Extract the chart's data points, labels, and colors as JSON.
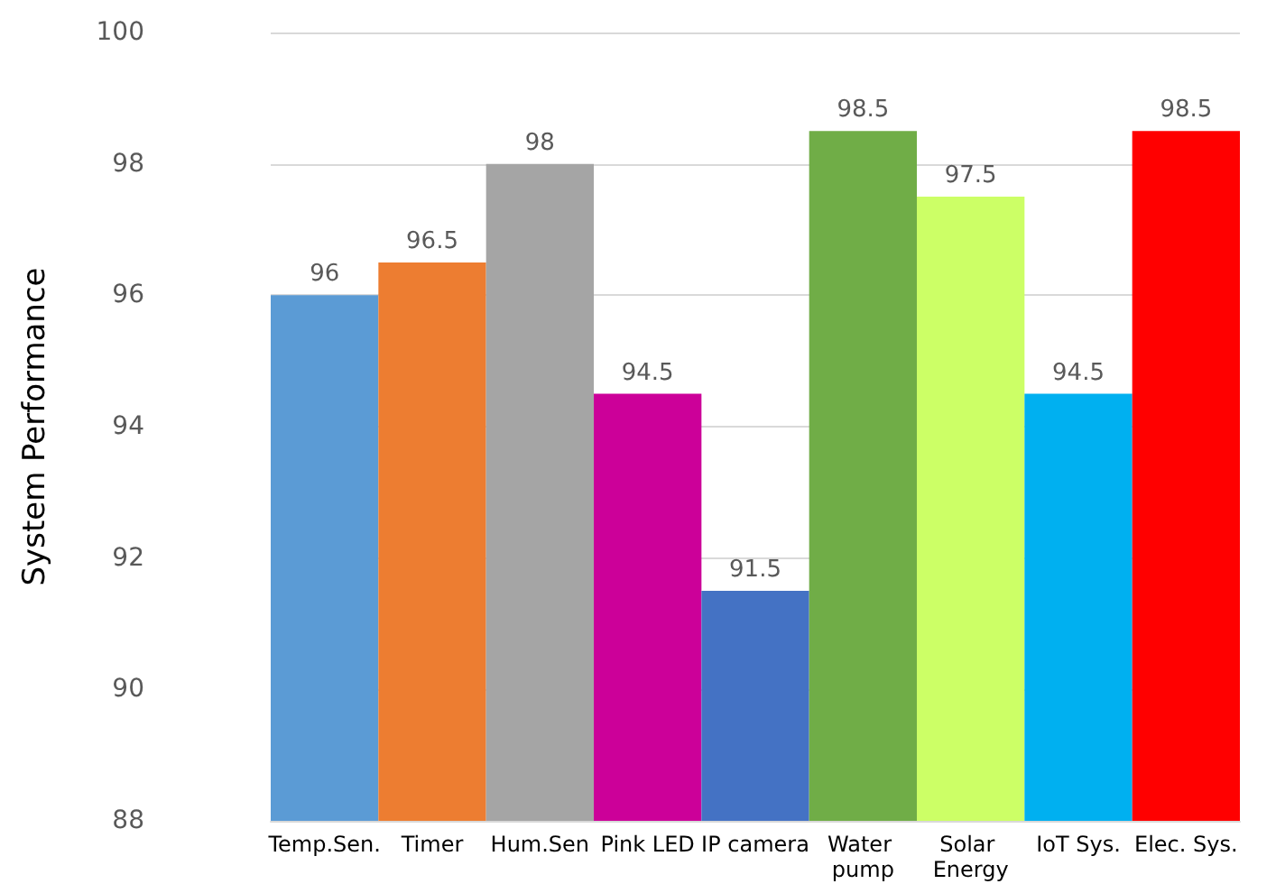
{
  "chart_data": {
    "type": "bar",
    "ylabel": "System Performance",
    "categories": [
      "Temp.Sen.",
      "Timer",
      "Hum.Sen",
      "Pink LED",
      "IP camera",
      "Water pump",
      "Solar Energy",
      "IoT Sys.",
      "Elec. Sys."
    ],
    "values": [
      96,
      96.5,
      98,
      94.5,
      91.5,
      98.5,
      97.5,
      94.5,
      98.5
    ],
    "colors": [
      "#5b9bd5",
      "#ed7d31",
      "#a5a5a5",
      "#cc0099",
      "#4472c4",
      "#70ad47",
      "#ccff66",
      "#00b0f0",
      "#ff0000"
    ],
    "ylim": [
      88,
      100
    ],
    "yticks": [
      88,
      90,
      92,
      94,
      96,
      98,
      100
    ],
    "grid": "y",
    "data_labels": true
  }
}
